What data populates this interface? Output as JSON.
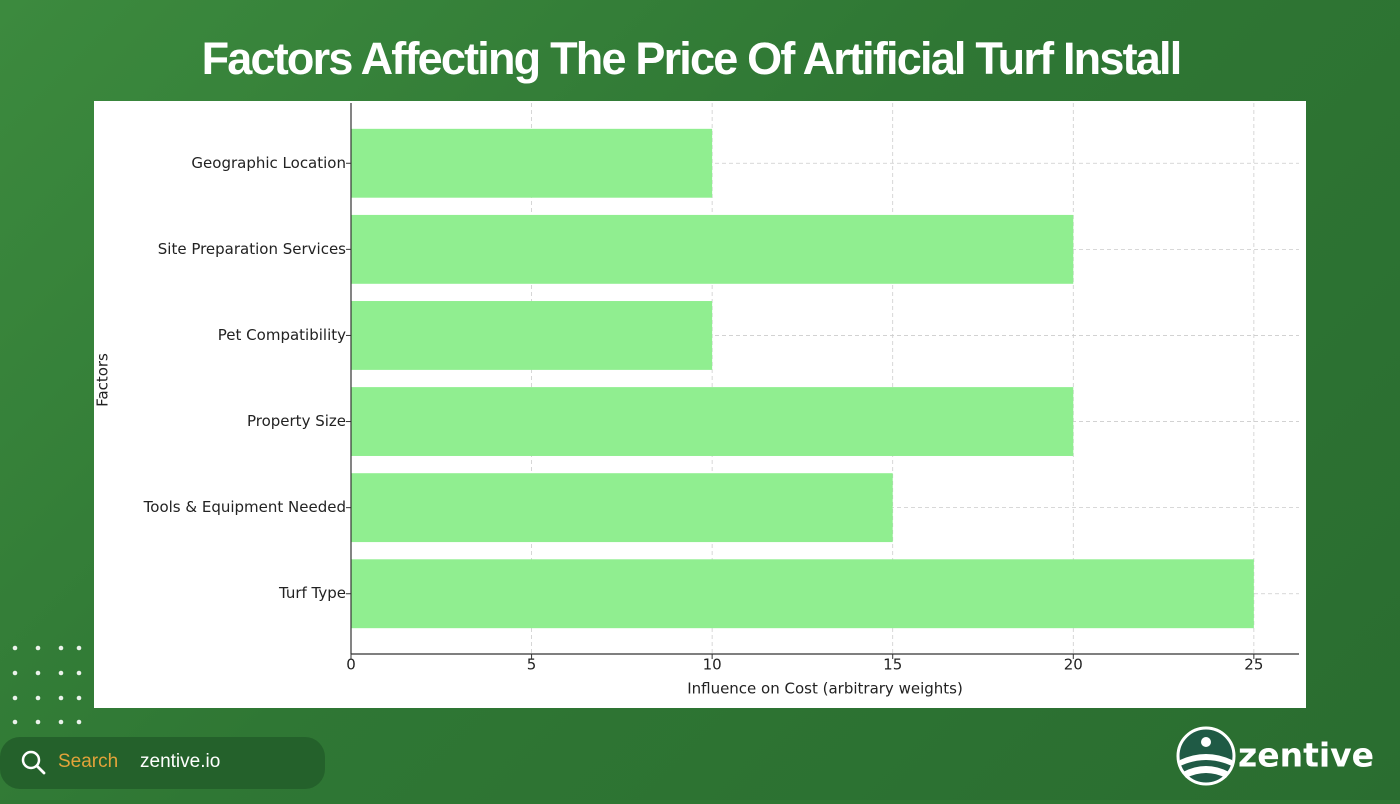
{
  "chart_data": {
    "type": "barh",
    "title": "Factors Affecting The Price Of Artificial Turf Install",
    "categories": [
      "Geographic Location",
      "Site Preparation Services",
      "Pet Compatibility",
      "Property Size",
      "Tools & Equipment Needed",
      "Turf Type"
    ],
    "values": [
      10,
      20,
      10,
      20,
      15,
      25
    ],
    "color": "#90ee90",
    "xlabel": "Influence on Cost (arbitrary weights)",
    "ylabel": "Factors",
    "xlim": [
      0,
      26.25
    ],
    "xticks": [
      0,
      5,
      10,
      15,
      20,
      25
    ],
    "grid": true
  },
  "footer": {
    "search_label": "Search",
    "search_text": "zentive.io",
    "brand": "zentive"
  }
}
